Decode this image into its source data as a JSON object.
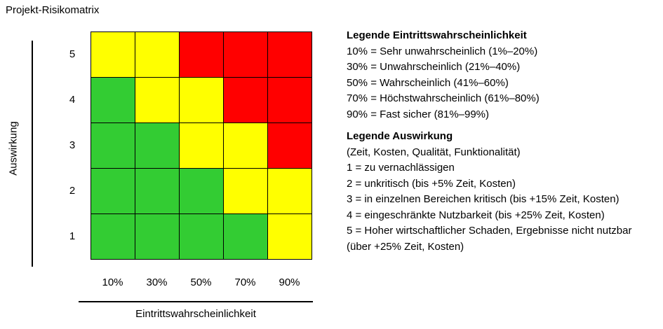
{
  "title": "Projekt-Risikomatrix",
  "y_axis": {
    "label": "Auswirkung",
    "ticks": [
      "5",
      "4",
      "3",
      "2",
      "1"
    ]
  },
  "x_axis": {
    "label": "Eintrittswahrscheinlichkeit",
    "ticks": [
      "10%",
      "30%",
      "50%",
      "70%",
      "90%"
    ]
  },
  "colors": {
    "green": "#33cc33",
    "yellow": "#ffff00",
    "red": "#ff0000"
  },
  "matrix": [
    [
      "yellow",
      "yellow",
      "red",
      "red",
      "red"
    ],
    [
      "green",
      "yellow",
      "yellow",
      "red",
      "red"
    ],
    [
      "green",
      "green",
      "yellow",
      "yellow",
      "red"
    ],
    [
      "green",
      "green",
      "green",
      "yellow",
      "yellow"
    ],
    [
      "green",
      "green",
      "green",
      "green",
      "yellow"
    ]
  ],
  "legend_probability": {
    "heading": "Legende Eintrittswahrscheinlichkeit",
    "items": [
      "10% = Sehr unwahrscheinlich (1%–20%)",
      "30% = Unwahrscheinlich (21%–40%)",
      "50% = Wahrscheinlich (41%–60%)",
      "70% = Höchstwahrscheinlich (61%–80%)",
      "90% = Fast sicher (81%–99%)"
    ]
  },
  "legend_impact": {
    "heading": "Legende Auswirkung",
    "items": [
      "(Zeit, Kosten, Qualität, Funktionalität)",
      "1 = zu vernachlässigen",
      "2 = unkritisch (bis +5% Zeit, Kosten)",
      "3 = in einzelnen Bereichen kritisch (bis +15% Zeit, Kosten)",
      "4 = eingeschränkte Nutzbarkeit (bis +25% Zeit, Kosten)",
      "5 = Hoher wirtschaftlicher Schaden, Ergebnisse nicht nutzbar (über +25% Zeit, Kosten)"
    ]
  }
}
